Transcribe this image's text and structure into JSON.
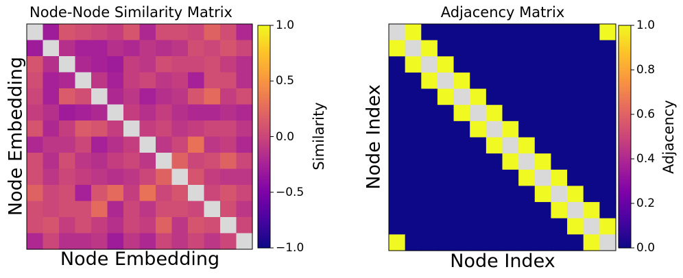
{
  "chart_data": [
    {
      "type": "heatmap",
      "title": "Node-Node Similarity Matrix",
      "xlabel": "Node Embedding",
      "ylabel": "Node Embedding",
      "colorbar_label": "Similarity",
      "colormap": "plasma",
      "diagonal_color": "#d9d9d9",
      "vmin": -1.0,
      "vmax": 1.0,
      "colorbar_ticks": [
        {
          "value": 1.0,
          "label": "1.0"
        },
        {
          "value": 0.5,
          "label": "0.5"
        },
        {
          "value": 0.0,
          "label": "0.0"
        },
        {
          "value": -0.5,
          "label": "−0.5"
        },
        {
          "value": -1.0,
          "label": "−1.0"
        }
      ],
      "matrix": [
        [
          null,
          -0.3,
          0.1,
          0.05,
          0.0,
          -0.05,
          0.1,
          -0.2,
          0.05,
          0.05,
          0.0,
          0.2,
          0.05,
          -0.2
        ],
        [
          -0.3,
          null,
          -0.15,
          -0.25,
          -0.25,
          -0.15,
          -0.2,
          -0.1,
          -0.15,
          -0.1,
          0.05,
          0.0,
          0.1,
          0.0
        ],
        [
          0.1,
          -0.15,
          null,
          -0.2,
          -0.25,
          -0.3,
          -0.05,
          -0.1,
          0.05,
          0.0,
          0.0,
          0.05,
          -0.05,
          -0.15
        ],
        [
          0.05,
          -0.25,
          -0.2,
          null,
          -0.1,
          -0.25,
          -0.05,
          0.0,
          -0.1,
          -0.05,
          -0.25,
          0.05,
          0.05,
          -0.15
        ],
        [
          0.0,
          -0.25,
          0.15,
          0.05,
          null,
          -0.2,
          -0.1,
          -0.25,
          -0.15,
          -0.1,
          0.1,
          0.25,
          -0.05,
          0.05
        ],
        [
          -0.05,
          -0.15,
          -0.3,
          -0.25,
          -0.2,
          null,
          -0.05,
          -0.15,
          -0.05,
          -0.15,
          -0.2,
          -0.2,
          -0.15,
          -0.2
        ],
        [
          0.1,
          -0.2,
          -0.05,
          0.15,
          0.1,
          -0.05,
          null,
          -0.05,
          0.0,
          -0.1,
          -0.05,
          0.0,
          0.0,
          -0.1
        ],
        [
          -0.2,
          -0.1,
          -0.1,
          0.0,
          -0.25,
          -0.15,
          -0.05,
          null,
          -0.1,
          0.0,
          0.3,
          -0.1,
          -0.05,
          -0.2
        ],
        [
          0.05,
          -0.15,
          0.05,
          -0.1,
          -0.15,
          -0.05,
          0.0,
          -0.1,
          null,
          0.2,
          0.0,
          0.05,
          0.2,
          0.0
        ],
        [
          0.05,
          -0.1,
          0.0,
          -0.05,
          -0.1,
          -0.15,
          -0.1,
          0.0,
          0.2,
          null,
          0.1,
          -0.05,
          -0.1,
          -0.1
        ],
        [
          0.2,
          0.0,
          0.05,
          -0.25,
          0.1,
          0.25,
          -0.05,
          0.3,
          0.0,
          0.1,
          null,
          0.0,
          0.1,
          0.0
        ],
        [
          0.05,
          0.0,
          0.05,
          0.05,
          0.25,
          -0.2,
          0.0,
          -0.1,
          0.05,
          0.05,
          0.0,
          null,
          0.05,
          -0.1
        ],
        [
          0.05,
          0.1,
          -0.05,
          0.05,
          -0.05,
          -0.15,
          0.0,
          -0.05,
          0.2,
          -0.1,
          0.1,
          0.05,
          null,
          0.0
        ],
        [
          -0.2,
          0.0,
          -0.15,
          -0.15,
          -0.1,
          -0.3,
          -0.1,
          -0.2,
          0.0,
          -0.1,
          0.0,
          -0.1,
          0.0,
          null
        ]
      ]
    },
    {
      "type": "heatmap",
      "title": "Adjacency Matrix",
      "xlabel": "Node Index",
      "ylabel": "Node Index",
      "colorbar_label": "Adjacency",
      "colormap": "plasma",
      "diagonal_color": "#d9d9d9",
      "vmin": 0.0,
      "vmax": 1.0,
      "colorbar_ticks": [
        {
          "value": 1.0,
          "label": "1.0"
        },
        {
          "value": 0.8,
          "label": "0.8"
        },
        {
          "value": 0.6,
          "label": "0.6"
        },
        {
          "value": 0.4,
          "label": "0.4"
        },
        {
          "value": 0.2,
          "label": "0.2"
        },
        {
          "value": 0.0,
          "label": "0.0"
        }
      ],
      "matrix": [
        [
          null,
          1,
          0,
          0,
          0,
          0,
          0,
          0,
          0,
          0,
          0,
          0,
          0,
          1
        ],
        [
          1,
          null,
          1,
          0,
          0,
          0,
          0,
          0,
          0,
          0,
          0,
          0,
          0,
          0
        ],
        [
          0,
          1,
          null,
          1,
          0,
          0,
          0,
          0,
          0,
          0,
          0,
          0,
          0,
          0
        ],
        [
          0,
          0,
          1,
          null,
          1,
          0,
          0,
          0,
          0,
          0,
          0,
          0,
          0,
          0
        ],
        [
          0,
          0,
          0,
          1,
          null,
          1,
          0,
          0,
          0,
          0,
          0,
          0,
          0,
          0
        ],
        [
          0,
          0,
          0,
          0,
          1,
          null,
          1,
          0,
          0,
          0,
          0,
          0,
          0,
          0
        ],
        [
          0,
          0,
          0,
          0,
          0,
          1,
          null,
          1,
          0,
          0,
          0,
          0,
          0,
          0
        ],
        [
          0,
          0,
          0,
          0,
          0,
          0,
          1,
          null,
          1,
          0,
          0,
          0,
          0,
          0
        ],
        [
          0,
          0,
          0,
          0,
          0,
          0,
          0,
          1,
          null,
          1,
          0,
          0,
          0,
          0
        ],
        [
          0,
          0,
          0,
          0,
          0,
          0,
          0,
          0,
          1,
          null,
          1,
          0,
          0,
          0
        ],
        [
          0,
          0,
          0,
          0,
          0,
          0,
          0,
          0,
          0,
          1,
          null,
          1,
          0,
          0
        ],
        [
          0,
          0,
          0,
          0,
          0,
          0,
          0,
          0,
          0,
          0,
          1,
          null,
          1,
          0
        ],
        [
          0,
          0,
          0,
          0,
          0,
          0,
          0,
          0,
          0,
          0,
          0,
          1,
          null,
          1
        ],
        [
          1,
          0,
          0,
          0,
          0,
          0,
          0,
          0,
          0,
          0,
          0,
          0,
          1,
          null
        ]
      ]
    }
  ]
}
